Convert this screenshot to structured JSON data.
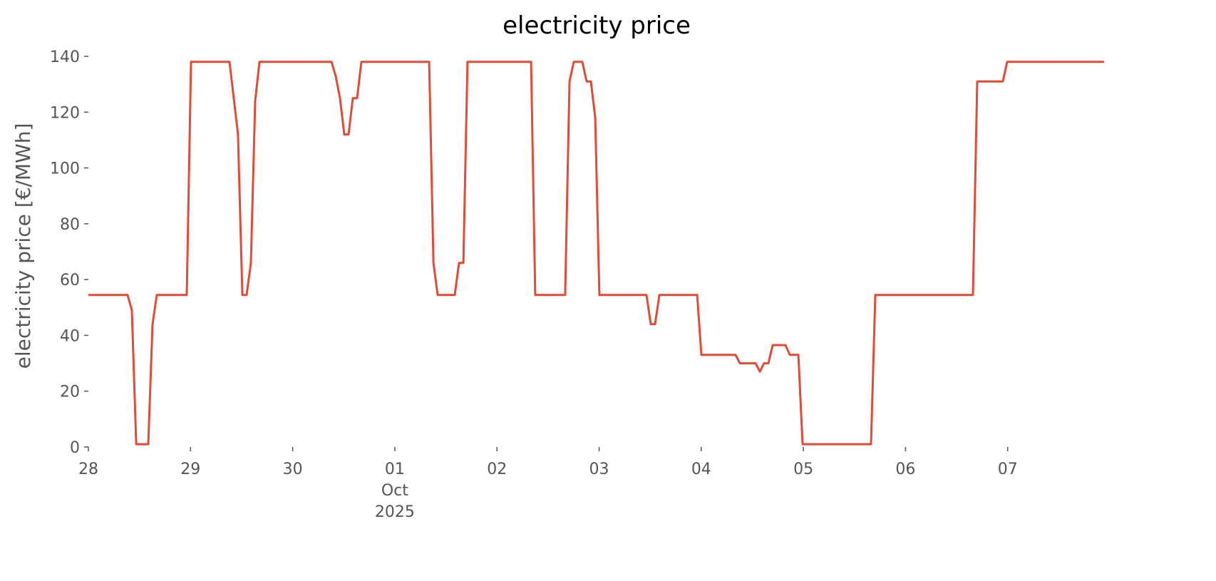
{
  "chart_data": {
    "type": "line",
    "title": "electricity price",
    "ylabel": "electricity price [€/MWh]",
    "x": [
      0,
      0.384,
      0.426,
      0.468,
      0.586,
      0.628,
      0.67,
      0.963,
      1.005,
      1.382,
      1.465,
      1.507,
      1.549,
      1.591,
      1.633,
      1.675,
      2.38,
      2.421,
      2.463,
      2.505,
      2.547,
      2.589,
      2.631,
      2.673,
      3.336,
      3.378,
      3.419,
      3.587,
      3.629,
      3.671,
      3.712,
      4.334,
      4.375,
      4.668,
      4.71,
      4.752,
      4.836,
      4.878,
      4.92,
      4.962,
      5.003,
      5.464,
      5.506,
      5.548,
      5.59,
      5.96,
      6.001,
      6.336,
      6.378,
      6.532,
      6.574,
      6.615,
      6.657,
      6.699,
      6.825,
      6.867,
      6.951,
      6.992,
      7.662,
      7.704,
      8.66,
      8.702,
      8.953,
      8.995,
      9.944
    ],
    "series": [
      {
        "name": "electricity price",
        "color": "#e24a33",
        "values": [
          54.5,
          54.5,
          49,
          1,
          1,
          44,
          54.5,
          54.5,
          138,
          138,
          112,
          54.5,
          54.5,
          66,
          124,
          138,
          138,
          133,
          125,
          112,
          112,
          125,
          125,
          138,
          138,
          66,
          54.5,
          54.5,
          66,
          66,
          138,
          138,
          54.5,
          54.5,
          131,
          138,
          138,
          131,
          131,
          118,
          54.5,
          54.5,
          44,
          44,
          54.5,
          54.5,
          33,
          33,
          30,
          30,
          27,
          30,
          30,
          36.5,
          36.5,
          33,
          33,
          1,
          1,
          54.5,
          54.5,
          131,
          131,
          138,
          138
        ]
      }
    ],
    "xlim": [
      0,
      9.944
    ],
    "xticks": [
      {
        "value": 0,
        "label": "28"
      },
      {
        "value": 1,
        "label": "29"
      },
      {
        "value": 2,
        "label": "30"
      },
      {
        "value": 3,
        "label": "01\nOct\n2025"
      },
      {
        "value": 4,
        "label": "02"
      },
      {
        "value": 5,
        "label": "03"
      },
      {
        "value": 6,
        "label": "04"
      },
      {
        "value": 7,
        "label": "05"
      },
      {
        "value": 8,
        "label": "06"
      },
      {
        "value": 9,
        "label": "07"
      }
    ],
    "ylim": [
      0,
      140
    ],
    "yticks": [
      0,
      20,
      40,
      60,
      80,
      100,
      120,
      140
    ],
    "grid": false
  }
}
